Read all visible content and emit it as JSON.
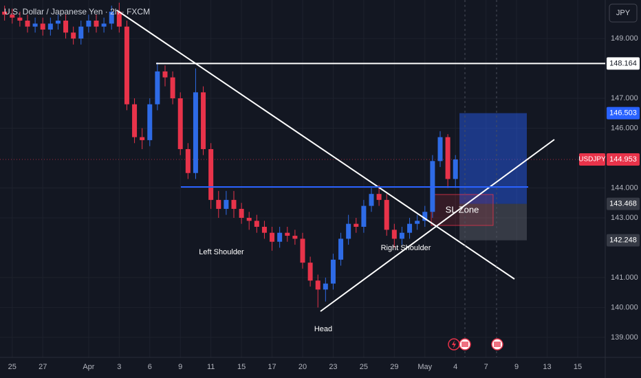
{
  "header": {
    "title": "U.S. Dollar / Japanese Yen · 2h · FXCM",
    "currency": "JPY"
  },
  "chart_data": {
    "type": "candlestick",
    "x": [
      -0.5,
      0,
      0.5,
      1,
      1.5,
      2,
      2.5,
      3,
      3.5,
      4,
      4.5,
      5,
      5.5,
      6,
      6.5,
      7,
      7.5,
      8,
      8.5,
      9,
      9.5,
      10,
      10.5,
      11,
      11.5,
      12,
      12.5,
      13,
      13.5,
      14,
      14.5,
      15,
      15.5,
      16,
      16.5,
      17,
      17.5,
      18,
      18.5,
      19,
      19.5,
      20,
      20.5,
      21,
      21.5,
      22,
      22.5,
      23,
      23.5,
      24,
      24.5,
      25,
      25.5,
      26,
      26.5,
      27,
      27.5,
      28,
      28.5,
      29
    ],
    "open": [
      149.9,
      149.8,
      149.7,
      149.6,
      149.4,
      149.5,
      149.3,
      149.5,
      149.6,
      149.2,
      149.0,
      149.4,
      149.6,
      149.4,
      149.5,
      149.9,
      149.4,
      146.8,
      145.7,
      145.6,
      146.8,
      147.9,
      147.7,
      147.0,
      145.3,
      144.5,
      147.2,
      145.3,
      143.6,
      143.3,
      143.6,
      143.3,
      143.0,
      142.9,
      142.7,
      142.5,
      142.2,
      142.5,
      142.4,
      142.3,
      141.5,
      140.9,
      140.6,
      140.8,
      141.6,
      142.3,
      142.8,
      142.7,
      143.4,
      143.8,
      143.6,
      142.6,
      142.3,
      142.5,
      142.8,
      142.9,
      143.2,
      144.9,
      145.7,
      144.3
    ],
    "high": [
      150.1,
      150.0,
      149.9,
      149.8,
      149.7,
      149.7,
      149.7,
      149.8,
      149.8,
      149.4,
      149.6,
      149.8,
      149.8,
      149.7,
      150.1,
      150.2,
      149.6,
      147.0,
      146.0,
      147.0,
      148.2,
      148.1,
      147.9,
      147.2,
      145.5,
      148.0,
      147.4,
      145.5,
      143.9,
      143.9,
      143.9,
      143.5,
      143.2,
      143.1,
      142.9,
      142.7,
      142.7,
      142.7,
      142.6,
      142.5,
      141.7,
      141.1,
      141.0,
      141.8,
      142.5,
      143.1,
      143.0,
      143.6,
      144.0,
      144.1,
      143.8,
      142.8,
      142.7,
      143.0,
      143.1,
      143.4,
      145.1,
      145.9,
      145.8,
      145.1
    ],
    "low": [
      149.6,
      149.5,
      149.4,
      149.2,
      149.2,
      149.1,
      149.1,
      149.3,
      149.0,
      148.8,
      148.8,
      149.2,
      149.2,
      149.2,
      149.3,
      149.2,
      146.6,
      145.5,
      145.3,
      145.4,
      146.6,
      147.4,
      146.8,
      145.1,
      144.3,
      144.3,
      145.1,
      143.3,
      143.0,
      143.1,
      143.0,
      142.8,
      142.6,
      142.5,
      142.3,
      141.9,
      142.0,
      142.2,
      142.1,
      141.3,
      140.7,
      140.0,
      140.2,
      140.6,
      141.4,
      142.1,
      142.5,
      142.5,
      143.2,
      143.4,
      142.4,
      142.0,
      142.1,
      142.3,
      142.6,
      142.7,
      143.0,
      144.7,
      144.0,
      144.0
    ],
    "close": [
      149.8,
      149.7,
      149.6,
      149.4,
      149.5,
      149.3,
      149.5,
      149.6,
      149.2,
      149.0,
      149.4,
      149.6,
      149.4,
      149.5,
      149.9,
      149.4,
      146.8,
      145.7,
      145.6,
      146.8,
      147.9,
      147.7,
      147.0,
      145.3,
      144.5,
      147.2,
      145.3,
      143.6,
      143.3,
      143.6,
      143.3,
      143.0,
      142.9,
      142.7,
      142.5,
      142.2,
      142.5,
      142.4,
      142.3,
      141.5,
      140.9,
      140.6,
      140.8,
      141.6,
      142.3,
      142.8,
      142.7,
      143.4,
      143.8,
      143.6,
      142.6,
      142.3,
      142.5,
      142.8,
      142.9,
      143.2,
      144.9,
      145.7,
      144.3,
      144.953
    ],
    "up_color": "#2e6be6",
    "down_color": "#e8334a",
    "xlim": [
      -0.8,
      38.8
    ],
    "xticks": [
      {
        "value": 0,
        "label": "25"
      },
      {
        "value": 2,
        "label": "27"
      },
      {
        "value": 5,
        "label": "Apr"
      },
      {
        "value": 7,
        "label": "3"
      },
      {
        "value": 9,
        "label": "6"
      },
      {
        "value": 11,
        "label": "9"
      },
      {
        "value": 13,
        "label": "11"
      },
      {
        "value": 15,
        "label": "15"
      },
      {
        "value": 17,
        "label": "17"
      },
      {
        "value": 19,
        "label": "20"
      },
      {
        "value": 21,
        "label": "23"
      },
      {
        "value": 23,
        "label": "25"
      },
      {
        "value": 25,
        "label": "29"
      },
      {
        "value": 27,
        "label": "May"
      },
      {
        "value": 29,
        "label": "4"
      },
      {
        "value": 31,
        "label": "7"
      },
      {
        "value": 33,
        "label": "9"
      },
      {
        "value": 35,
        "label": "13"
      },
      {
        "value": 37,
        "label": "15"
      }
    ],
    "ylim": [
      138.33,
      150.29
    ],
    "yticks": [
      {
        "value": 139,
        "label": "139.000"
      },
      {
        "value": 140,
        "label": "140.000"
      },
      {
        "value": 141,
        "label": "141.000"
      },
      {
        "value": 143,
        "label": "143.000"
      },
      {
        "value": 144,
        "label": "144.000"
      },
      {
        "value": 146,
        "label": "146.000"
      },
      {
        "value": 147,
        "label": "147.000"
      },
      {
        "value": 149,
        "label": "149.000"
      }
    ],
    "grid": true,
    "horizontal_line": 148.164,
    "position": {
      "target": 146.503,
      "entry": 143.468,
      "stop": 142.248
    },
    "last_price": {
      "symbol": "USDJPY",
      "value": 144.953
    },
    "annotations": [
      "Left Shoulder",
      "Head",
      "Right Shoulder",
      "SL Zone"
    ]
  }
}
